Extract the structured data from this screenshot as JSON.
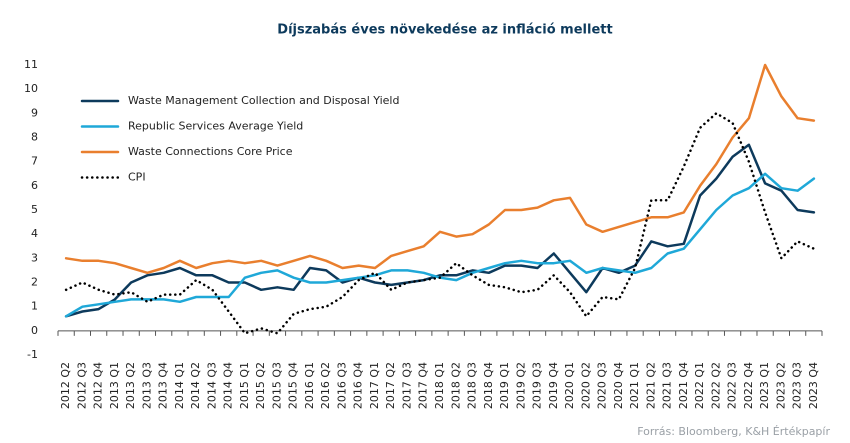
{
  "chart_data": {
    "type": "line",
    "title": "Díjszabás éves növekedése az infláció mellett",
    "source": "Forrás: Bloomberg, K&H Értékpapír",
    "categories": [
      "2012 Q2",
      "2012 Q3",
      "2012 Q4",
      "2013 Q1",
      "2013 Q2",
      "2013 Q3",
      "2013 Q4",
      "2014 Q1",
      "2014 Q2",
      "2014 Q3",
      "2014 Q4",
      "2015 Q1",
      "2015 Q2",
      "2015 Q3",
      "2015 Q4",
      "2016 Q1",
      "2016 Q2",
      "2016 Q3",
      "2016 Q4",
      "2017 Q1",
      "2017 Q2",
      "2017 Q3",
      "2017 Q4",
      "2018 Q1",
      "2018 Q2",
      "2018 Q3",
      "2018 Q4",
      "2019 Q1",
      "2019 Q2",
      "2019 Q3",
      "2019 Q4",
      "2020 Q1",
      "2020 Q2",
      "2020 Q3",
      "2020 Q4",
      "2021 Q1",
      "2021 Q2",
      "2021 Q3",
      "2021 Q4",
      "2022 Q1",
      "2022 Q2",
      "2022 Q3",
      "2022 Q4",
      "2023 Q1",
      "2023 Q2",
      "2023 Q3",
      "2023 Q4"
    ],
    "series": [
      {
        "name": "Waste Management Collection and Disposal Yield",
        "color": "#0d3a5c",
        "style": "solid",
        "values": [
          0.6,
          0.8,
          0.9,
          1.3,
          2.0,
          2.3,
          2.4,
          2.6,
          2.3,
          2.3,
          2.0,
          2.0,
          1.7,
          1.8,
          1.7,
          2.6,
          2.5,
          2.0,
          2.2,
          2.0,
          1.9,
          2.0,
          2.1,
          2.3,
          2.3,
          2.5,
          2.4,
          2.7,
          2.7,
          2.6,
          3.2,
          2.4,
          1.6,
          2.6,
          2.4,
          2.7,
          3.7,
          3.5,
          3.6,
          5.6,
          6.3,
          7.2,
          7.7,
          6.1,
          5.8,
          5.0,
          4.9
        ]
      },
      {
        "name": "Republic Services Average Yield",
        "color": "#1fa8d8",
        "style": "solid",
        "values": [
          0.6,
          1.0,
          1.1,
          1.2,
          1.3,
          1.3,
          1.3,
          1.2,
          1.4,
          1.4,
          1.4,
          2.2,
          2.4,
          2.5,
          2.2,
          2.0,
          2.0,
          2.1,
          2.2,
          2.3,
          2.5,
          2.5,
          2.4,
          2.2,
          2.1,
          2.4,
          2.6,
          2.8,
          2.9,
          2.8,
          2.8,
          2.9,
          2.4,
          2.6,
          2.5,
          2.4,
          2.6,
          3.2,
          3.4,
          4.2,
          5.0,
          5.6,
          5.9,
          6.5,
          5.9,
          5.8,
          6.3
        ]
      },
      {
        "name": "Waste Connections Core Price",
        "color": "#e97f2e",
        "style": "solid",
        "values": [
          3.0,
          2.9,
          2.9,
          2.8,
          2.6,
          2.4,
          2.6,
          2.9,
          2.6,
          2.8,
          2.9,
          2.8,
          2.9,
          2.7,
          2.9,
          3.1,
          2.9,
          2.6,
          2.7,
          2.6,
          3.1,
          3.3,
          3.5,
          4.1,
          3.9,
          4.0,
          4.4,
          5.0,
          5.0,
          5.1,
          5.4,
          5.5,
          4.4,
          4.1,
          4.3,
          4.5,
          4.7,
          4.7,
          4.9,
          6.0,
          6.9,
          8.0,
          8.8,
          11.0,
          9.7,
          8.8,
          8.7
        ]
      },
      {
        "name": "CPI",
        "color": "#000000",
        "style": "dotted",
        "values": [
          1.7,
          2.0,
          1.7,
          1.5,
          1.6,
          1.2,
          1.5,
          1.5,
          2.1,
          1.7,
          0.8,
          -0.1,
          0.1,
          -0.1,
          0.7,
          0.9,
          1.0,
          1.4,
          2.1,
          2.4,
          1.7,
          2.0,
          2.1,
          2.2,
          2.8,
          2.3,
          1.9,
          1.8,
          1.6,
          1.7,
          2.3,
          1.6,
          0.6,
          1.4,
          1.3,
          2.6,
          5.4,
          5.4,
          6.8,
          8.4,
          9.0,
          8.6,
          7.0,
          4.9,
          3.0,
          3.7,
          3.4
        ]
      }
    ],
    "ylim": [
      -1,
      11
    ],
    "yticks": [
      -1,
      0,
      1,
      2,
      3,
      4,
      5,
      6,
      7,
      8,
      9,
      10,
      11
    ],
    "grid": false,
    "legend": "top-left"
  }
}
